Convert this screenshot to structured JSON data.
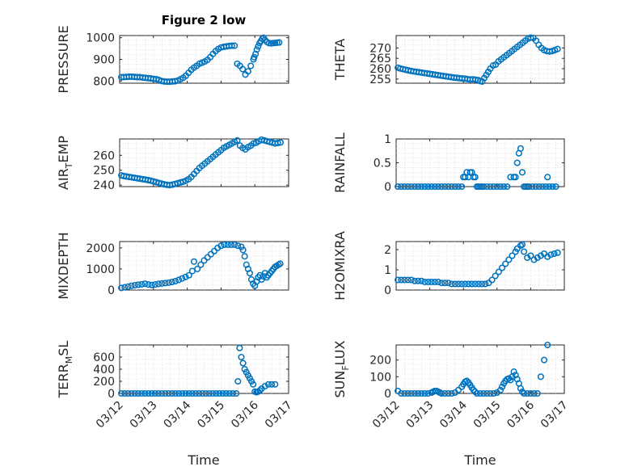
{
  "figure": {
    "title": "Figure 2 low",
    "xlabel": "Time"
  },
  "chart_data": [
    {
      "type": "scatter",
      "panel": "pressure",
      "ylabel": {
        "main": "PRESSURE"
      },
      "xlim": [
        0,
        5
      ],
      "xticks": [],
      "ylim": [
        790,
        1010
      ],
      "yticks": [
        800,
        900,
        1000
      ],
      "grid": true,
      "marker_color": "#0072bd",
      "x": [
        0.05,
        0.12,
        0.2,
        0.28,
        0.36,
        0.44,
        0.52,
        0.6,
        0.68,
        0.76,
        0.84,
        0.92,
        1.0,
        1.08,
        1.16,
        1.24,
        1.32,
        1.4,
        1.48,
        1.56,
        1.64,
        1.72,
        1.8,
        1.88,
        1.96,
        2.04,
        2.12,
        2.2,
        2.28,
        2.36,
        2.44,
        2.52,
        2.6,
        2.68,
        2.76,
        2.84,
        2.92,
        3.0,
        3.08,
        3.16,
        3.24,
        3.32,
        3.4,
        3.48,
        3.56,
        3.64,
        3.72,
        3.8,
        3.88,
        3.96,
        3.98,
        4.02,
        4.06,
        4.1,
        4.14,
        4.18,
        4.22,
        4.26,
        4.3,
        4.36,
        4.42,
        4.48,
        4.54,
        4.6,
        4.66,
        4.72
      ],
      "y": [
        818,
        818,
        819,
        820,
        820,
        819,
        818,
        818,
        816,
        815,
        813,
        812,
        810,
        809,
        805,
        800,
        798,
        797,
        797,
        798,
        799,
        802,
        808,
        815,
        825,
        838,
        852,
        862,
        870,
        880,
        885,
        890,
        898,
        910,
        925,
        938,
        948,
        955,
        958,
        960,
        962,
        963,
        963,
        880,
        870,
        855,
        830,
        845,
        870,
        900,
        910,
        925,
        945,
        960,
        975,
        985,
        995,
        1000,
        990,
        980,
        975,
        974,
        975,
        976,
        977,
        978
      ]
    },
    {
      "type": "scatter",
      "panel": "theta",
      "ylabel": {
        "main": "THETA"
      },
      "xlim": [
        0,
        5
      ],
      "xticks": [],
      "ylim": [
        253,
        276
      ],
      "yticks": [
        255,
        260,
        265,
        270
      ],
      "grid": true,
      "marker_color": "#0072bd",
      "x": [
        0.05,
        0.12,
        0.2,
        0.28,
        0.36,
        0.44,
        0.52,
        0.6,
        0.68,
        0.76,
        0.84,
        0.92,
        1.0,
        1.08,
        1.16,
        1.24,
        1.32,
        1.4,
        1.48,
        1.56,
        1.64,
        1.72,
        1.8,
        1.88,
        1.96,
        2.04,
        2.12,
        2.2,
        2.28,
        2.36,
        2.44,
        2.5,
        2.56,
        2.62,
        2.68,
        2.74,
        2.8,
        2.88,
        2.96,
        3.04,
        3.12,
        3.2,
        3.28,
        3.36,
        3.44,
        3.52,
        3.6,
        3.68,
        3.76,
        3.84,
        3.92,
        4.0,
        4.08,
        4.16,
        4.24,
        4.32,
        4.4,
        4.48,
        4.56,
        4.64,
        4.72,
        4.8
      ],
      "y": [
        260.5,
        260.1,
        259.8,
        259.5,
        259.2,
        258.9,
        258.7,
        258.5,
        258.3,
        258.1,
        257.9,
        257.7,
        257.5,
        257.3,
        257.1,
        256.9,
        256.7,
        256.5,
        256.3,
        256.1,
        255.9,
        255.7,
        255.6,
        255.4,
        255.3,
        255.2,
        255.0,
        254.8,
        254.9,
        254.7,
        254.5,
        254.0,
        253.8,
        255.5,
        257.0,
        258.5,
        260.0,
        261.5,
        262.0,
        263.5,
        264.5,
        265.5,
        266.5,
        267.5,
        268.5,
        269.5,
        270.5,
        271.5,
        272.5,
        273.5,
        274.5,
        275.0,
        274.8,
        273.5,
        271.5,
        270.0,
        269.0,
        268.5,
        268.3,
        268.5,
        269.0,
        269.5
      ]
    },
    {
      "type": "scatter",
      "panel": "air_temp",
      "ylabel": {
        "main": "AIR",
        "subscript": "T",
        "suffix": "EMP"
      },
      "xlim": [
        0,
        5
      ],
      "xticks": [],
      "ylim": [
        239,
        271
      ],
      "yticks": [
        240,
        250,
        260
      ],
      "grid": true,
      "marker_color": "#0072bd",
      "x": [
        0.05,
        0.12,
        0.2,
        0.28,
        0.36,
        0.44,
        0.52,
        0.6,
        0.68,
        0.76,
        0.84,
        0.92,
        1.0,
        1.08,
        1.16,
        1.24,
        1.32,
        1.4,
        1.48,
        1.56,
        1.64,
        1.72,
        1.8,
        1.88,
        1.96,
        2.04,
        2.12,
        2.2,
        2.28,
        2.36,
        2.44,
        2.52,
        2.6,
        2.68,
        2.76,
        2.84,
        2.92,
        3.0,
        3.08,
        3.16,
        3.24,
        3.32,
        3.4,
        3.48,
        3.56,
        3.64,
        3.72,
        3.8,
        3.88,
        3.96,
        4.04,
        4.12,
        4.2,
        4.28,
        4.36,
        4.44,
        4.52,
        4.6,
        4.68,
        4.76
      ],
      "y": [
        246.5,
        246.1,
        245.8,
        245.5,
        245.2,
        244.9,
        244.6,
        244.3,
        244.0,
        243.7,
        243.4,
        243.0,
        242.5,
        242.0,
        241.5,
        241.0,
        240.5,
        240.2,
        240.0,
        240.3,
        240.8,
        241.3,
        241.8,
        242.3,
        243.0,
        244.0,
        245.5,
        247.5,
        249.5,
        251.5,
        253.0,
        254.5,
        256.0,
        257.5,
        259.0,
        260.5,
        262.0,
        263.5,
        265.0,
        266.0,
        267.0,
        268.0,
        269.0,
        270.0,
        266.5,
        265.0,
        264.0,
        265.5,
        266.5,
        268.0,
        268.5,
        269.5,
        270.5,
        270.0,
        269.5,
        269.0,
        268.5,
        268.0,
        268.3,
        268.6
      ]
    },
    {
      "type": "scatter",
      "panel": "rainfall",
      "ylabel": {
        "main": "RAINFALL"
      },
      "xlim": [
        0,
        5
      ],
      "xticks": [],
      "ylim": [
        0,
        1
      ],
      "yticks": [
        0,
        0.5,
        1
      ],
      "grid": true,
      "marker_color": "#0072bd",
      "x": [
        0.05,
        0.15,
        0.25,
        0.35,
        0.45,
        0.55,
        0.65,
        0.75,
        0.85,
        0.95,
        1.05,
        1.15,
        1.25,
        1.35,
        1.45,
        1.55,
        1.65,
        1.75,
        1.85,
        1.95,
        2.0,
        2.05,
        2.1,
        2.15,
        2.2,
        2.25,
        2.3,
        2.35,
        2.4,
        2.45,
        2.5,
        2.55,
        2.6,
        2.7,
        2.8,
        2.9,
        3.0,
        3.1,
        3.2,
        3.3,
        3.4,
        3.5,
        3.55,
        3.6,
        3.65,
        3.7,
        3.75,
        3.8,
        3.85,
        3.9,
        3.95,
        4.05,
        4.15,
        4.25,
        4.35,
        4.45,
        4.5,
        4.55,
        4.65,
        4.75
      ],
      "y": [
        0,
        0,
        0,
        0,
        0,
        0,
        0,
        0,
        0,
        0,
        0,
        0,
        0,
        0,
        0,
        0,
        0,
        0,
        0,
        0,
        0.2,
        0.2,
        0.3,
        0.2,
        0.3,
        0.3,
        0.2,
        0.2,
        0,
        0,
        0,
        0,
        0,
        0,
        0,
        0,
        0,
        0,
        0,
        0,
        0.2,
        0.2,
        0.2,
        0.5,
        0.7,
        0.8,
        0.3,
        0,
        0,
        0,
        0,
        0,
        0,
        0,
        0,
        0,
        0.2,
        0,
        0,
        0
      ]
    },
    {
      "type": "scatter",
      "panel": "mixdepth",
      "ylabel": {
        "main": "MIXDEPTH"
      },
      "xlim": [
        0,
        5
      ],
      "xticks": [],
      "ylim": [
        0,
        2300
      ],
      "yticks": [
        0,
        1000,
        2000
      ],
      "grid": true,
      "marker_color": "#0072bd",
      "x": [
        0.05,
        0.15,
        0.25,
        0.35,
        0.45,
        0.55,
        0.65,
        0.75,
        0.85,
        0.95,
        1.05,
        1.15,
        1.25,
        1.35,
        1.45,
        1.55,
        1.65,
        1.75,
        1.85,
        1.95,
        2.05,
        2.15,
        2.2,
        2.3,
        2.4,
        2.5,
        2.6,
        2.7,
        2.8,
        2.9,
        3.0,
        3.1,
        3.2,
        3.3,
        3.4,
        3.5,
        3.6,
        3.65,
        3.7,
        3.75,
        3.8,
        3.85,
        3.9,
        3.95,
        4.0,
        4.05,
        4.1,
        4.15,
        4.2,
        4.25,
        4.3,
        4.35,
        4.4,
        4.45,
        4.5,
        4.55,
        4.6,
        4.65,
        4.7,
        4.75
      ],
      "y": [
        100,
        130,
        160,
        200,
        230,
        250,
        270,
        300,
        260,
        240,
        260,
        290,
        310,
        330,
        350,
        380,
        420,
        480,
        550,
        620,
        700,
        900,
        1350,
        1000,
        1200,
        1400,
        1550,
        1700,
        1850,
        2000,
        2100,
        2150,
        2150,
        2150,
        2150,
        2100,
        2050,
        1900,
        1600,
        1200,
        1000,
        800,
        500,
        300,
        200,
        400,
        600,
        700,
        500,
        650,
        800,
        600,
        700,
        800,
        900,
        1000,
        1100,
        1150,
        1200,
        1250
      ]
    },
    {
      "type": "scatter",
      "panel": "h2omixra",
      "ylabel": {
        "main": "H2OMIXRA"
      },
      "xlim": [
        0,
        5
      ],
      "xticks": [],
      "ylim": [
        0,
        2.4
      ],
      "yticks": [
        0,
        1,
        2
      ],
      "grid": true,
      "marker_color": "#0072bd",
      "x": [
        0.05,
        0.15,
        0.25,
        0.35,
        0.45,
        0.55,
        0.65,
        0.75,
        0.85,
        0.95,
        1.05,
        1.15,
        1.25,
        1.35,
        1.45,
        1.55,
        1.65,
        1.75,
        1.85,
        1.95,
        2.05,
        2.15,
        2.25,
        2.35,
        2.45,
        2.55,
        2.65,
        2.75,
        2.85,
        2.95,
        3.05,
        3.15,
        3.25,
        3.35,
        3.45,
        3.55,
        3.6,
        3.7,
        3.75,
        3.8,
        3.9,
        4.0,
        4.1,
        4.2,
        4.3,
        4.4,
        4.5,
        4.6,
        4.7,
        4.8
      ],
      "y": [
        0.5,
        0.5,
        0.5,
        0.5,
        0.5,
        0.45,
        0.45,
        0.45,
        0.4,
        0.4,
        0.4,
        0.4,
        0.4,
        0.35,
        0.35,
        0.35,
        0.3,
        0.3,
        0.3,
        0.3,
        0.3,
        0.3,
        0.3,
        0.3,
        0.3,
        0.3,
        0.3,
        0.35,
        0.5,
        0.7,
        0.9,
        1.1,
        1.3,
        1.5,
        1.7,
        1.9,
        2.05,
        2.2,
        2.25,
        1.9,
        1.6,
        1.7,
        1.5,
        1.6,
        1.7,
        1.8,
        1.65,
        1.75,
        1.8,
        1.85
      ]
    },
    {
      "type": "scatter",
      "panel": "terr_msl",
      "ylabel": {
        "main": "TERR",
        "subscript": "M",
        "suffix": "SL"
      },
      "xlim": [
        0,
        5
      ],
      "xticks": [
        "03/12",
        "03/13",
        "03/14",
        "03/15",
        "03/16",
        "03/17"
      ],
      "ylim": [
        0,
        800
      ],
      "yticks": [
        0,
        200,
        400,
        600
      ],
      "grid": true,
      "marker_color": "#0072bd",
      "x": [
        0.05,
        0.15,
        0.25,
        0.35,
        0.45,
        0.55,
        0.65,
        0.75,
        0.85,
        0.95,
        1.05,
        1.15,
        1.25,
        1.35,
        1.45,
        1.55,
        1.65,
        1.75,
        1.85,
        1.95,
        2.05,
        2.15,
        2.25,
        2.35,
        2.45,
        2.55,
        2.65,
        2.75,
        2.85,
        2.95,
        3.05,
        3.15,
        3.25,
        3.35,
        3.45,
        3.5,
        3.55,
        3.6,
        3.65,
        3.7,
        3.75,
        3.8,
        3.85,
        3.9,
        3.95,
        4.0,
        4.05,
        4.1,
        4.15,
        4.2,
        4.3,
        4.4,
        4.5,
        4.6
      ],
      "y": [
        0,
        0,
        0,
        0,
        0,
        0,
        0,
        0,
        0,
        0,
        0,
        0,
        0,
        0,
        0,
        0,
        0,
        0,
        0,
        0,
        0,
        0,
        0,
        0,
        0,
        0,
        0,
        0,
        0,
        0,
        0,
        0,
        0,
        0,
        0,
        200,
        750,
        600,
        500,
        400,
        350,
        300,
        250,
        200,
        150,
        30,
        20,
        30,
        50,
        80,
        120,
        150,
        150,
        150
      ]
    },
    {
      "type": "scatter",
      "panel": "sun_flux",
      "ylabel": {
        "main": "SUN",
        "subscript": "F",
        "suffix": "LUX"
      },
      "xlim": [
        0,
        5
      ],
      "xticks": [
        "03/12",
        "03/13",
        "03/14",
        "03/15",
        "03/16",
        "03/17"
      ],
      "ylim": [
        0,
        290
      ],
      "yticks": [
        0,
        100,
        200
      ],
      "grid": true,
      "marker_color": "#0072bd",
      "x": [
        0.05,
        0.15,
        0.25,
        0.35,
        0.45,
        0.55,
        0.65,
        0.75,
        0.85,
        0.95,
        1.05,
        1.1,
        1.15,
        1.2,
        1.25,
        1.3,
        1.35,
        1.45,
        1.55,
        1.65,
        1.75,
        1.85,
        1.95,
        2.0,
        2.05,
        2.1,
        2.15,
        2.2,
        2.25,
        2.3,
        2.35,
        2.4,
        2.5,
        2.6,
        2.7,
        2.8,
        2.9,
        3.0,
        3.1,
        3.15,
        3.2,
        3.25,
        3.3,
        3.35,
        3.4,
        3.45,
        3.5,
        3.55,
        3.6,
        3.65,
        3.7,
        3.75,
        3.8,
        3.9,
        4.0,
        4.1,
        4.2,
        4.3,
        4.4,
        4.5
      ],
      "y": [
        15,
        0,
        0,
        0,
        0,
        0,
        0,
        0,
        0,
        0,
        5,
        10,
        15,
        15,
        10,
        5,
        0,
        0,
        0,
        0,
        5,
        20,
        40,
        55,
        70,
        75,
        65,
        50,
        35,
        20,
        10,
        0,
        0,
        0,
        0,
        0,
        0,
        5,
        20,
        40,
        60,
        75,
        85,
        90,
        80,
        100,
        130,
        110,
        85,
        60,
        30,
        10,
        0,
        0,
        0,
        0,
        0,
        100,
        200,
        290
      ]
    }
  ]
}
